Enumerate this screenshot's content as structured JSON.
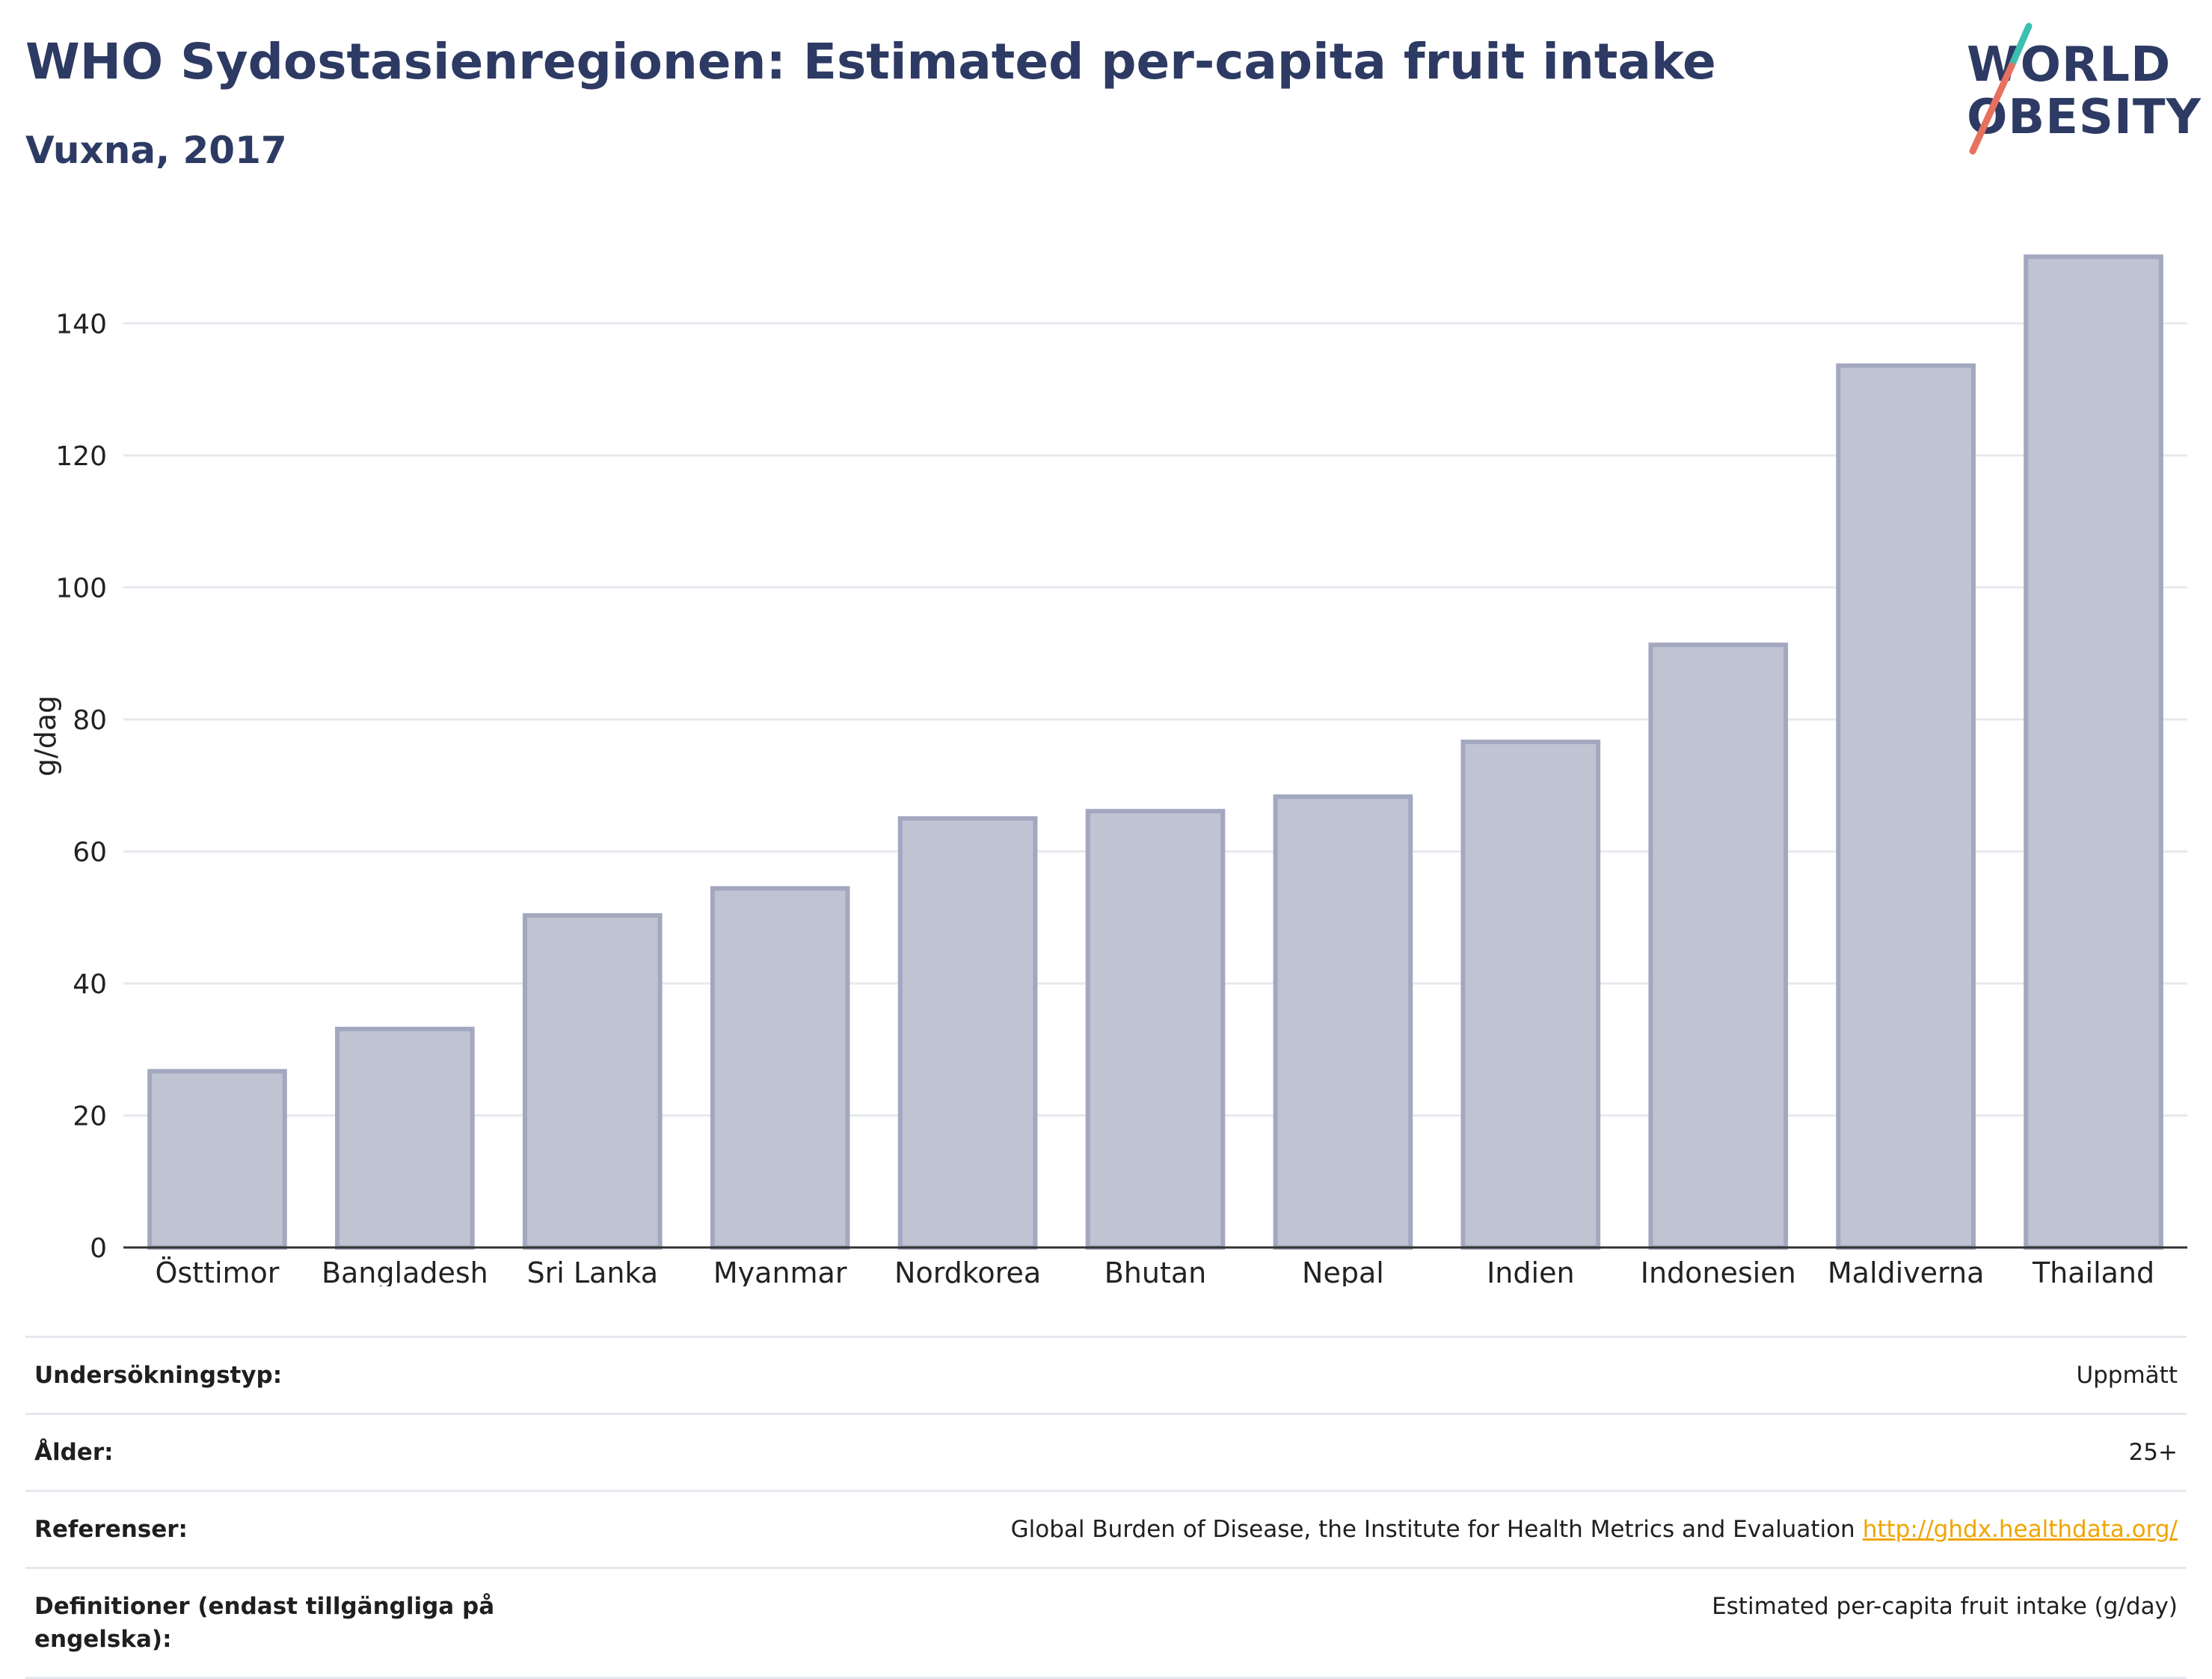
{
  "title": "WHO Sydostasienregionen: Estimated per-capita fruit intake",
  "subtitle": "Vuxna, 2017",
  "logo": {
    "line1": "WORLD",
    "line2": "OBESITY",
    "accent_colors": [
      "#3bbfb0",
      "#e8705f"
    ]
  },
  "colors": {
    "bar_fill": "#bfc3d2",
    "bar_stroke": "#a3a8c0",
    "grid": "#e8e9ef",
    "axis": "#333333",
    "text_dark": "#2d3a63"
  },
  "chart_data": {
    "type": "bar",
    "title": "WHO Sydostasienregionen: Estimated per-capita fruit intake",
    "subtitle": "Vuxna, 2017",
    "categories": [
      "Östtimor",
      "Bangladesh",
      "Sri Lanka",
      "Myanmar",
      "Nordkorea",
      "Bhutan",
      "Nepal",
      "Indien",
      "Indonesien",
      "Maldiverna",
      "Thailand"
    ],
    "values": [
      26.7,
      33.1,
      50.3,
      54.4,
      65.0,
      66.1,
      68.3,
      76.6,
      91.3,
      133.6,
      150.1
    ],
    "ylabel": "g/dag",
    "xlabel": "",
    "ylim": [
      0,
      155
    ],
    "yticks": [
      0,
      20,
      40,
      60,
      80,
      100,
      120,
      140
    ],
    "grid": true,
    "legend": "none"
  },
  "info": {
    "rows": [
      {
        "label": "Undersökningstyp:",
        "value": "Uppmätt",
        "link": ""
      },
      {
        "label": "Ålder:",
        "value": "25+",
        "link": ""
      },
      {
        "label": "Referenser:",
        "value": "Global Burden of Disease, the Institute for Health Metrics and Evaluation",
        "link": "http://ghdx.healthdata.org/"
      },
      {
        "label": "Definitioner (endast tillgängliga på engelska):",
        "value": "Estimated per-capita fruit intake (g/day)",
        "link": ""
      }
    ]
  }
}
